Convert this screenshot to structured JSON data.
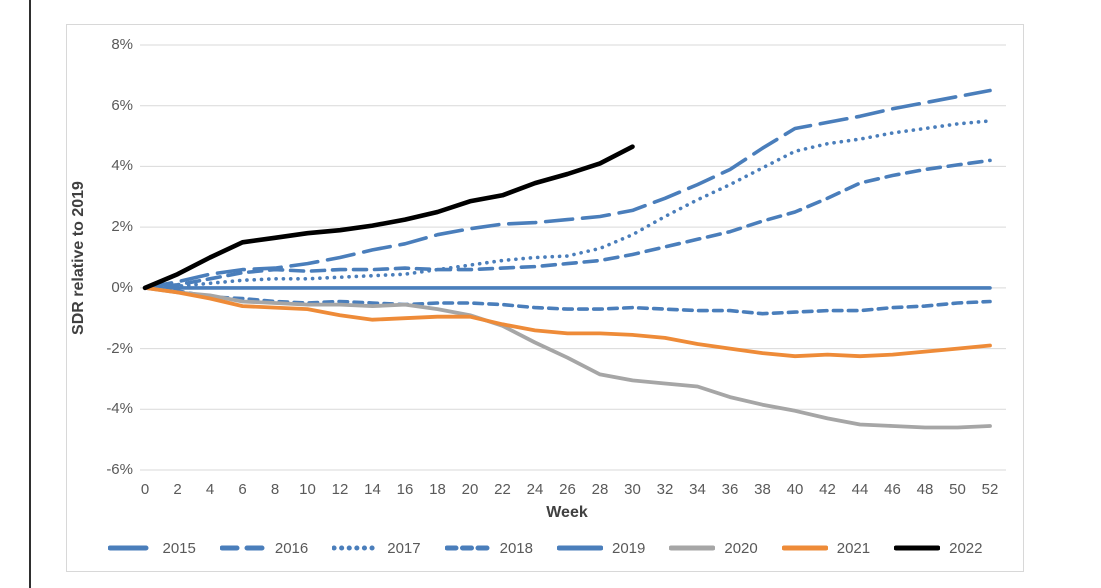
{
  "chart": {
    "y_axis_title": "SDR relative to 2019",
    "x_axis_title": "Week"
  },
  "chart_data": {
    "type": "line",
    "title": "",
    "xlabel": "Week",
    "ylabel": "SDR relative to 2019",
    "xlim": [
      0,
      52
    ],
    "ylim": [
      -6,
      8
    ],
    "grid": true,
    "grid_color": "#d9d9d9",
    "text_color": "#595959",
    "legend_position": "bottom",
    "xticks": [
      0,
      2,
      4,
      6,
      8,
      10,
      12,
      14,
      16,
      18,
      20,
      22,
      24,
      26,
      28,
      30,
      32,
      34,
      36,
      38,
      40,
      42,
      44,
      46,
      48,
      50,
      52
    ],
    "yticks": [
      8,
      6,
      4,
      2,
      0,
      -2,
      -4,
      -6
    ],
    "ytick_labels": [
      "8%",
      "6%",
      "4%",
      "2%",
      "0%",
      "-2%",
      "-4%",
      "-6%"
    ],
    "x": [
      0,
      2,
      4,
      6,
      8,
      10,
      12,
      14,
      16,
      18,
      20,
      22,
      24,
      26,
      28,
      30,
      32,
      34,
      36,
      38,
      40,
      42,
      44,
      46,
      48,
      50,
      52
    ],
    "series": [
      {
        "name": "2015",
        "color": "#4a7ebb",
        "style": "long-dash",
        "width": 3.6,
        "values": [
          0,
          0.2,
          0.45,
          0.6,
          0.65,
          0.8,
          1.0,
          1.25,
          1.45,
          1.75,
          1.95,
          2.1,
          2.15,
          2.25,
          2.35,
          2.55,
          2.95,
          3.4,
          3.9,
          4.6,
          5.25,
          5.45,
          5.65,
          5.9,
          6.1,
          6.3,
          6.5
        ]
      },
      {
        "name": "2016",
        "color": "#4a7ebb",
        "style": "dash",
        "width": 3.6,
        "values": [
          0,
          0.1,
          0.3,
          0.5,
          0.6,
          0.55,
          0.6,
          0.6,
          0.65,
          0.6,
          0.6,
          0.65,
          0.7,
          0.8,
          0.9,
          1.1,
          1.35,
          1.6,
          1.85,
          2.2,
          2.5,
          2.95,
          3.45,
          3.7,
          3.9,
          4.05,
          4.2
        ]
      },
      {
        "name": "2017",
        "color": "#4a7ebb",
        "style": "dot",
        "width": 3.6,
        "values": [
          0,
          0.05,
          0.15,
          0.25,
          0.3,
          0.3,
          0.35,
          0.4,
          0.45,
          0.6,
          0.75,
          0.9,
          1.0,
          1.05,
          1.3,
          1.75,
          2.35,
          2.9,
          3.4,
          3.95,
          4.5,
          4.75,
          4.9,
          5.1,
          5.25,
          5.4,
          5.5
        ]
      },
      {
        "name": "2018",
        "color": "#4a7ebb",
        "style": "short-dash",
        "width": 3.6,
        "values": [
          0,
          -0.1,
          -0.3,
          -0.35,
          -0.45,
          -0.5,
          -0.45,
          -0.5,
          -0.55,
          -0.5,
          -0.5,
          -0.55,
          -0.65,
          -0.7,
          -0.7,
          -0.65,
          -0.7,
          -0.75,
          -0.75,
          -0.85,
          -0.8,
          -0.75,
          -0.75,
          -0.65,
          -0.6,
          -0.5,
          -0.45
        ]
      },
      {
        "name": "2019",
        "color": "#4a7ebb",
        "style": "solid",
        "width": 3.6,
        "values": [
          0,
          0,
          0,
          0,
          0,
          0,
          0,
          0,
          0,
          0,
          0,
          0,
          0,
          0,
          0,
          0,
          0,
          0,
          0,
          0,
          0,
          0,
          0,
          0,
          0,
          0,
          0
        ]
      },
      {
        "name": "2020",
        "color": "#a6a6a6",
        "style": "solid",
        "width": 3.8,
        "values": [
          0,
          -0.15,
          -0.25,
          -0.45,
          -0.5,
          -0.55,
          -0.55,
          -0.6,
          -0.55,
          -0.7,
          -0.9,
          -1.25,
          -1.8,
          -2.3,
          -2.85,
          -3.05,
          -3.15,
          -3.25,
          -3.6,
          -3.85,
          -4.05,
          -4.3,
          -4.5,
          -4.55,
          -4.6,
          -4.6,
          -4.55
        ]
      },
      {
        "name": "2021",
        "color": "#ee8b38",
        "style": "solid",
        "width": 3.8,
        "values": [
          0,
          -0.15,
          -0.35,
          -0.6,
          -0.65,
          -0.7,
          -0.9,
          -1.05,
          -1.0,
          -0.95,
          -0.95,
          -1.2,
          -1.4,
          -1.5,
          -1.5,
          -1.55,
          -1.65,
          -1.85,
          -2.0,
          -2.15,
          -2.25,
          -2.2,
          -2.25,
          -2.2,
          -2.1,
          -2.0,
          -1.9
        ]
      },
      {
        "name": "2022",
        "color": "#000000",
        "style": "solid",
        "width": 4.6,
        "values": [
          0,
          0.45,
          1.0,
          1.5,
          1.65,
          1.8,
          1.9,
          2.05,
          2.25,
          2.5,
          2.85,
          3.05,
          3.45,
          3.75,
          4.1,
          4.65
        ]
      }
    ]
  }
}
